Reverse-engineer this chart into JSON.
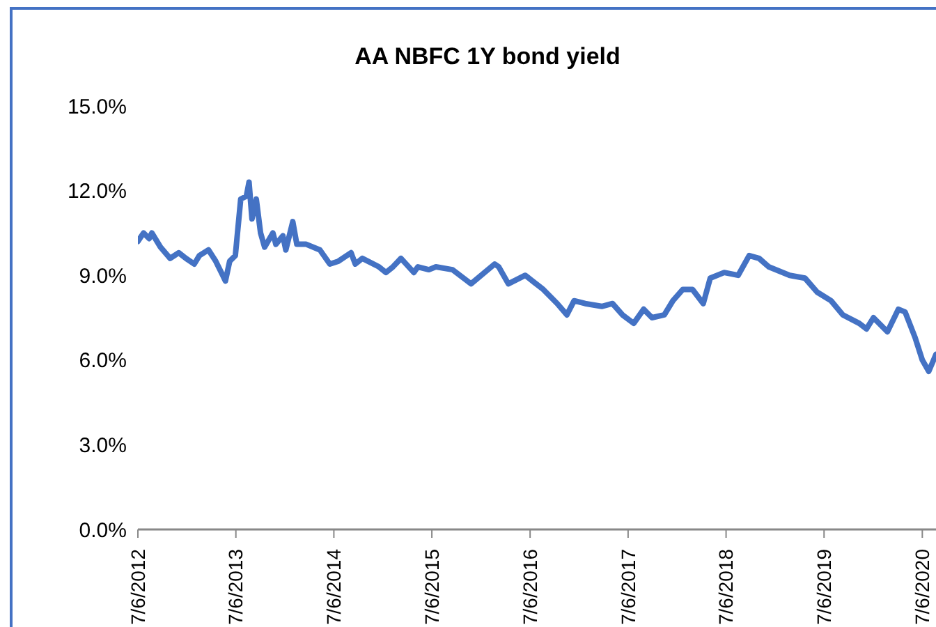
{
  "chart_data": {
    "type": "line",
    "title": "AA NBFC 1Y bond yield",
    "x": [
      "2012-07-06",
      "2012-07-27",
      "2012-08-17",
      "2012-08-27",
      "2012-09-28",
      "2012-11-03",
      "2012-12-05",
      "2013-01-01",
      "2013-02-01",
      "2013-02-20",
      "2013-03-26",
      "2013-04-22",
      "2013-05-18",
      "2013-05-28",
      "2013-06-13",
      "2013-07-04",
      "2013-07-09",
      "2013-07-24",
      "2013-08-14",
      "2013-08-24",
      "2013-09-04",
      "2013-09-20",
      "2013-10-06",
      "2013-10-21",
      "2013-11-21",
      "2013-12-02",
      "2013-12-28",
      "2014-01-08",
      "2014-02-03",
      "2014-02-18",
      "2014-03-25",
      "2014-05-15",
      "2014-06-21",
      "2014-07-23",
      "2014-09-08",
      "2014-09-24",
      "2014-10-20",
      "2014-12-21",
      "2015-01-16",
      "2015-02-11",
      "2015-03-13",
      "2015-04-30",
      "2015-05-15",
      "2015-06-25",
      "2015-07-21",
      "2015-09-21",
      "2015-11-29",
      "2016-02-25",
      "2016-03-11",
      "2016-04-16",
      "2016-06-18",
      "2016-08-24",
      "2016-10-15",
      "2016-11-20",
      "2016-12-17",
      "2017-01-27",
      "2017-03-30",
      "2017-05-09",
      "2017-06-15",
      "2017-07-27",
      "2017-09-02",
      "2017-10-03",
      "2017-11-18",
      "2017-12-20",
      "2018-01-26",
      "2018-03-03",
      "2018-04-12",
      "2018-05-08",
      "2018-06-29",
      "2018-08-20",
      "2018-09-30",
      "2018-11-06",
      "2018-12-12",
      "2019-02-28",
      "2019-04-26",
      "2019-06-11",
      "2019-08-01",
      "2019-09-14",
      "2019-11-14",
      "2019-12-11",
      "2020-01-06",
      "2020-02-27",
      "2020-04-08",
      "2020-05-03",
      "2020-06-09",
      "2020-07-06",
      "2020-07-30",
      "2020-08-26"
    ],
    "series": [
      {
        "color": "#4472c4",
        "values": [
          10.2,
          10.5,
          10.3,
          10.5,
          10.0,
          9.6,
          9.8,
          9.6,
          9.4,
          9.7,
          9.9,
          9.5,
          9.0,
          8.8,
          9.5,
          9.7,
          10.2,
          11.7,
          11.8,
          12.3,
          11.0,
          11.7,
          10.5,
          10.0,
          10.5,
          10.1,
          10.4,
          9.9,
          10.9,
          10.1,
          10.1,
          9.9,
          9.4,
          9.5,
          9.8,
          9.4,
          9.6,
          9.3,
          9.1,
          9.3,
          9.6,
          9.1,
          9.3,
          9.2,
          9.3,
          9.2,
          8.7,
          9.4,
          9.3,
          8.7,
          9.0,
          8.5,
          8.0,
          7.6,
          8.1,
          8.0,
          7.9,
          8.0,
          7.6,
          7.3,
          7.8,
          7.5,
          7.6,
          8.1,
          8.5,
          8.5,
          8.0,
          8.9,
          9.1,
          9.0,
          9.7,
          9.6,
          9.3,
          9.0,
          8.9,
          8.4,
          8.1,
          7.6,
          7.3,
          7.1,
          7.5,
          7.0,
          7.8,
          7.7,
          6.8,
          6.0,
          5.6,
          6.2
        ]
      }
    ],
    "xlim": [
      "2012-07-06",
      "2020-08-26"
    ],
    "xticks": [
      {
        "value": "2012-07-06",
        "label": "7/6/2012"
      },
      {
        "value": "2013-07-06",
        "label": "7/6/2013"
      },
      {
        "value": "2014-07-06",
        "label": "7/6/2014"
      },
      {
        "value": "2015-07-06",
        "label": "7/6/2015"
      },
      {
        "value": "2016-07-06",
        "label": "7/6/2016"
      },
      {
        "value": "2017-07-06",
        "label": "7/6/2017"
      },
      {
        "value": "2018-07-06",
        "label": "7/6/2018"
      },
      {
        "value": "2019-07-06",
        "label": "7/6/2019"
      },
      {
        "value": "2020-07-06",
        "label": "7/6/2020"
      }
    ],
    "ylim": [
      0,
      15
    ],
    "yticks": [
      {
        "value": 0,
        "label": "0.0%"
      },
      {
        "value": 3,
        "label": "3.0%"
      },
      {
        "value": 6,
        "label": "6.0%"
      },
      {
        "value": 9,
        "label": "9.0%"
      },
      {
        "value": 12,
        "label": "12.0%"
      },
      {
        "value": 15,
        "label": "15.0%"
      }
    ]
  }
}
